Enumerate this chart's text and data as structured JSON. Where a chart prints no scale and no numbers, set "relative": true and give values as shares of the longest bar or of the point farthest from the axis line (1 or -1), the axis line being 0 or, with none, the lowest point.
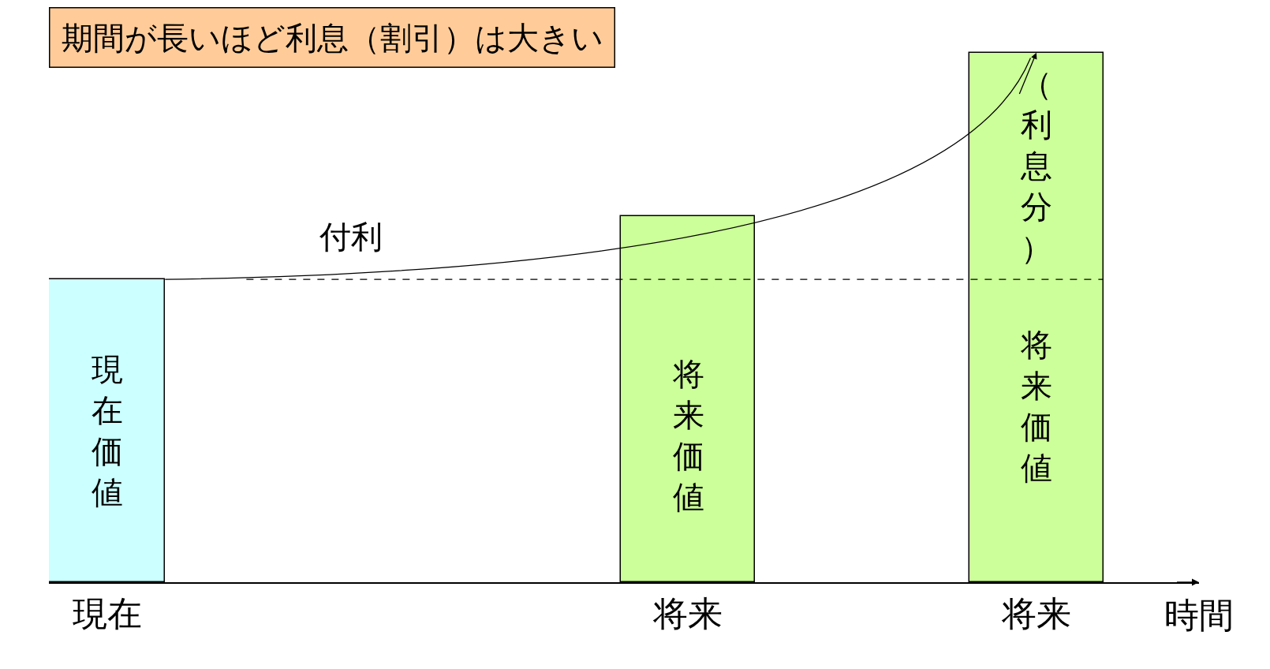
{
  "chart_data": {
    "type": "bar",
    "relative": true,
    "title": "期間が長いほど利息（割引）は大きい",
    "xlabel": "時間",
    "categories": [
      "現在",
      null,
      null,
      null,
      null,
      "将来",
      null,
      null,
      "将来"
    ],
    "values": [
      0.572,
      null,
      null,
      null,
      null,
      0.691,
      null,
      null,
      1
    ],
    "colors": [
      "#ccffff",
      null,
      null,
      null,
      null,
      "#ccff99",
      null,
      null,
      "#ccff99"
    ],
    "ref_lines": [
      {
        "axis": "y",
        "value": 0.572,
        "line_style": "dashed",
        "color": "#000000"
      }
    ],
    "annotations": [
      "付利",
      "現在価値",
      "将来価値",
      "将来価値",
      "（利息分）"
    ]
  }
}
